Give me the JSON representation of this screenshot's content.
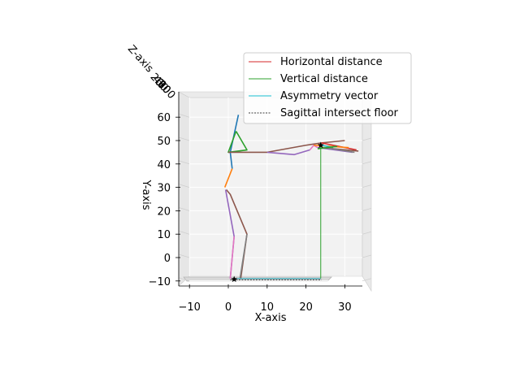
{
  "chart_data": {
    "type": "line",
    "projection": "3d",
    "title": "",
    "xlabel": "X-axis",
    "ylabel": "Y-axis",
    "zlabel": "Z-axis",
    "xlim": [
      -13,
      35
    ],
    "ylim": [
      -12,
      64
    ],
    "xticks": [
      "−10",
      "0",
      "10",
      "20",
      "30"
    ],
    "yticks": [
      "−10",
      "0",
      "10",
      "20",
      "30",
      "40",
      "50",
      "60"
    ],
    "zticks": [
      "20",
      "40",
      "60",
      "80",
      "100"
    ],
    "grid": true,
    "legend": {
      "position": "top-right",
      "entries": [
        {
          "label": "Horizontal distance",
          "color": "#d62728",
          "style": "solid"
        },
        {
          "label": "Vertical distance",
          "color": "#2ca02c",
          "style": "solid"
        },
        {
          "label": "Asymmetry vector",
          "color": "#17becf",
          "style": "solid"
        },
        {
          "label": "Sagittal intersect floor",
          "color": "#000000",
          "style": "dashed"
        }
      ]
    },
    "skeleton_segments": [
      {
        "color": "#1f77b4",
        "points": [
          [
            2.6,
            61
          ],
          [
            0.5,
            45
          ],
          [
            1,
            38
          ]
        ]
      },
      {
        "color": "#ff7f0e",
        "points": [
          [
            1,
            38
          ],
          [
            -0.9,
            30
          ]
        ]
      },
      {
        "color": "#2ca02c",
        "points": [
          [
            2,
            54
          ],
          [
            4.8,
            46
          ],
          [
            0,
            45
          ],
          [
            2,
            54
          ]
        ]
      },
      {
        "color": "#8c564b",
        "points": [
          [
            0,
            45
          ],
          [
            10,
            45
          ],
          [
            20,
            48
          ],
          [
            24,
            49
          ],
          [
            30,
            50
          ]
        ]
      },
      {
        "color": "#9467bd",
        "points": [
          [
            10,
            45
          ],
          [
            17,
            44
          ],
          [
            21,
            46
          ]
        ]
      },
      {
        "color": "#e377c2",
        "points": [
          [
            21,
            46
          ],
          [
            22,
            48
          ],
          [
            23,
            47
          ]
        ]
      },
      {
        "color": "#8c564b",
        "points": [
          [
            -0.5,
            29
          ],
          [
            0.5,
            27
          ],
          [
            4.8,
            10
          ],
          [
            3.2,
            -9
          ]
        ]
      },
      {
        "color": "#9467bd",
        "points": [
          [
            -0.7,
            29
          ],
          [
            1.5,
            9
          ],
          [
            0.5,
            -9
          ]
        ]
      },
      {
        "color": "#e377c2",
        "points": [
          [
            1.5,
            9
          ],
          [
            0.5,
            -9
          ]
        ]
      },
      {
        "color": "#7f7f7f",
        "points": [
          [
            4.8,
            10
          ],
          [
            3.0,
            -9
          ]
        ]
      },
      {
        "color": "#d62728",
        "points": [
          [
            24,
            49
          ],
          [
            33,
            46
          ]
        ]
      },
      {
        "color": "#ff7f0e",
        "points": [
          [
            22,
            48
          ],
          [
            31,
            47
          ]
        ]
      },
      {
        "color": "#9467bd",
        "points": [
          [
            23,
            47
          ],
          [
            32,
            45
          ]
        ]
      },
      {
        "color": "#17becf",
        "points": [
          [
            24,
            48
          ],
          [
            27,
            47
          ]
        ]
      },
      {
        "color": "#8c564b",
        "points": [
          [
            24,
            47
          ],
          [
            33.5,
            45.5
          ]
        ]
      },
      {
        "color": "#7f7f7f",
        "points": [
          [
            25,
            47
          ],
          [
            32.5,
            45
          ]
        ]
      },
      {
        "color": "#2ca02c",
        "points": [
          [
            23,
            46.5
          ],
          [
            28,
            47.5
          ]
        ]
      }
    ],
    "measurement_lines": [
      {
        "name": "Vertical distance",
        "color": "#2ca02c",
        "points": [
          [
            23.8,
            48
          ],
          [
            23.8,
            -9
          ]
        ]
      },
      {
        "name": "Horizontal distance",
        "color": "#d62728",
        "points": [
          [
            1.5,
            -9
          ],
          [
            23.8,
            -9
          ]
        ]
      },
      {
        "name": "Asymmetry vector",
        "color": "#17becf",
        "points": [
          [
            1.5,
            -9
          ],
          [
            23.8,
            -9
          ]
        ]
      }
    ],
    "star_markers": [
      {
        "x": 23.8,
        "y": 48
      },
      {
        "x": 1.5,
        "y": -9.3
      }
    ]
  }
}
